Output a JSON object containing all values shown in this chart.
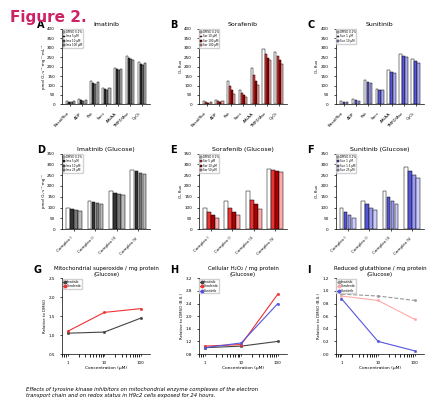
{
  "figure_title": "Figure 2.",
  "subtitle_italic": "Effects of tyrosine kinase inhibitors on mitochondrial enzyme complexes of the electron\ntransport chain and on redox status in H9c2 cells exposed for 24 hours.",
  "panel_A": {
    "label": "A",
    "title": "Imatinib",
    "xlabel_categories": [
      "Basal/Rot",
      "ADP",
      "Rot",
      "Succ",
      "AA/AA",
      "TMPD/Asc",
      "CyCt"
    ],
    "ylim": [
      0,
      400
    ],
    "legend_labels": [
      "DMSO 0.1%",
      "Ima 5 μM",
      "Ima 10 μM",
      "Ima 100 μM"
    ],
    "bar_colors": [
      "white",
      "#333333",
      "#777777",
      "#bbbbbb"
    ],
    "data": [
      [
        18,
        14,
        11,
        16
      ],
      [
        28,
        23,
        20,
        26
      ],
      [
        125,
        115,
        110,
        120
      ],
      [
        88,
        82,
        78,
        85
      ],
      [
        195,
        185,
        180,
        190
      ],
      [
        255,
        245,
        240,
        235
      ],
      [
        225,
        215,
        210,
        220
      ]
    ]
  },
  "panel_B": {
    "label": "B",
    "title": "Sorafenib",
    "xlabel_categories": [
      "Basal/Rot",
      "ADP",
      "Rot",
      "Succ",
      "AA/AA",
      "TMPD/Asc",
      "CyCt"
    ],
    "ylim": [
      0,
      400
    ],
    "legend_labels": [
      "DMSO 0.1%",
      "Sor 10 μM",
      "Sor 100 μM",
      "Sor 100 μM"
    ],
    "bar_colors": [
      "white",
      "#ee3333",
      "#aa0000",
      "#ffaaaa"
    ],
    "data": [
      [
        18,
        12,
        10,
        14
      ],
      [
        25,
        18,
        14,
        20
      ],
      [
        125,
        95,
        75,
        55
      ],
      [
        78,
        62,
        48,
        38
      ],
      [
        195,
        155,
        125,
        105
      ],
      [
        295,
        265,
        245,
        235
      ],
      [
        275,
        255,
        235,
        215
      ]
    ]
  },
  "panel_C": {
    "label": "C",
    "title": "Sunitinib",
    "xlabel_categories": [
      "Basal/Rot",
      "ADP",
      "Rot",
      "Succ",
      "AA/AA",
      "TMPD/Asc",
      "CyCt"
    ],
    "ylim": [
      0,
      400
    ],
    "legend_labels": [
      "DMSO 0.1%",
      "Sun 1 μM",
      "Sun 10 μM"
    ],
    "bar_colors": [
      "white",
      "#5555dd",
      "#aaaaee"
    ],
    "data": [
      [
        20,
        15,
        13
      ],
      [
        28,
        22,
        18
      ],
      [
        128,
        118,
        112
      ],
      [
        83,
        78,
        76
      ],
      [
        182,
        172,
        168
      ],
      [
        268,
        258,
        252
      ],
      [
        238,
        228,
        218
      ]
    ]
  },
  "panel_D": {
    "label": "D",
    "title": "Imatinib (Glucose)",
    "xlabel_categories": [
      "Complex I",
      "Complex II",
      "Complex III",
      "Complex IV"
    ],
    "ylim": [
      0,
      350
    ],
    "legend_labels": [
      "DMSO 0.1%",
      "Ima 5 μM",
      "Ima 10 μM",
      "Ima 25 μM"
    ],
    "bar_colors": [
      "white",
      "#333333",
      "#777777",
      "#bbbbbb"
    ],
    "data": [
      [
        100,
        95,
        90,
        85
      ],
      [
        130,
        125,
        120,
        118
      ],
      [
        175,
        168,
        162,
        158
      ],
      [
        275,
        268,
        260,
        255
      ]
    ]
  },
  "panel_E": {
    "label": "E",
    "title": "Sorafenib (Glucose)",
    "xlabel_categories": [
      "Complex I",
      "Complex II",
      "Complex III",
      "Complex IV"
    ],
    "ylim": [
      0,
      350
    ],
    "legend_labels": [
      "DMSO 0.1%",
      "Sor 5 μM",
      "Sor 10 μM",
      "Sor 50 μM"
    ],
    "bar_colors": [
      "white",
      "#ee3333",
      "#aa0000",
      "#ffaaaa"
    ],
    "data": [
      [
        100,
        80,
        65,
        50
      ],
      [
        130,
        100,
        80,
        65
      ],
      [
        175,
        135,
        115,
        95
      ],
      [
        280,
        275,
        270,
        265
      ]
    ]
  },
  "panel_F": {
    "label": "F",
    "title": "Sunitinib (Glucose)",
    "xlabel_categories": [
      "Complex I",
      "Complex II",
      "Complex III",
      "Complex IV"
    ],
    "ylim": [
      0,
      350
    ],
    "legend_labels": [
      "DMSO 0.1%",
      "Sun 1 μM",
      "Sun 1.5 μM",
      "Sun 25 μM"
    ],
    "bar_colors": [
      "white",
      "#5555dd",
      "#9999ee",
      "#ccccff"
    ],
    "data": [
      [
        100,
        80,
        65,
        50
      ],
      [
        130,
        115,
        100,
        90
      ],
      [
        175,
        150,
        130,
        115
      ],
      [
        290,
        270,
        250,
        235
      ]
    ]
  },
  "panel_G": {
    "label": "G",
    "title": "Mitochondrial superoxide / mg protein\n(Glucose)",
    "xlabel": "Concentration (μM)",
    "ylim": [
      0.5,
      2.5
    ],
    "yticks": [
      0.5,
      1.0,
      1.5,
      2.0,
      2.5
    ],
    "xvalues": [
      1,
      10,
      100
    ],
    "series": [
      {
        "label": "Imatinib",
        "color": "#444444",
        "linestyle": "-",
        "data": [
          1.05,
          1.08,
          1.45
        ]
      },
      {
        "label": "Sorafenib",
        "color": "#ee3333",
        "linestyle": "-",
        "data": [
          1.1,
          1.6,
          1.7
        ]
      }
    ]
  },
  "panel_H": {
    "label": "H",
    "title": "Cellular H₂O₂ / mg protein\n(Glucose)",
    "xlabel": "Concentration (μM)",
    "ylim": [
      0.8,
      3.2
    ],
    "yticks": [
      0.8,
      1.2,
      1.6,
      2.0,
      2.4,
      2.8,
      3.2
    ],
    "xvalues": [
      1,
      10,
      100
    ],
    "series": [
      {
        "label": "Imatinib",
        "color": "#444444",
        "linestyle": "-",
        "data": [
          1.0,
          1.05,
          1.2
        ]
      },
      {
        "label": "Sorafenib",
        "color": "#ee3333",
        "linestyle": "-",
        "data": [
          1.05,
          1.1,
          2.7
        ]
      },
      {
        "label": "Sunitinib",
        "color": "#5555dd",
        "linestyle": "-",
        "data": [
          1.0,
          1.15,
          2.4
        ]
      }
    ]
  },
  "panel_I": {
    "label": "I",
    "title": "Reduced glutathione / mg protein\n(Glucose)",
    "xlabel": "Concentration (μM)",
    "ylim": [
      0.0,
      1.2
    ],
    "yticks": [
      0.0,
      0.2,
      0.4,
      0.6,
      0.8,
      1.0,
      1.2
    ],
    "xvalues": [
      1,
      10,
      100
    ],
    "series": [
      {
        "label": "Imatinib",
        "color": "#999999",
        "linestyle": "--",
        "data": [
          0.95,
          0.92,
          0.85
        ]
      },
      {
        "label": "Sorafenib",
        "color": "#ffaaaa",
        "linestyle": "-",
        "data": [
          0.92,
          0.85,
          0.55
        ]
      },
      {
        "label": "Sunitinib",
        "color": "#5555dd",
        "linestyle": "-",
        "data": [
          0.88,
          0.2,
          0.05
        ]
      }
    ]
  },
  "bg_color": "#ffffff",
  "figure_title_color": "#cc2266",
  "teal_line_color": "#5599aa"
}
